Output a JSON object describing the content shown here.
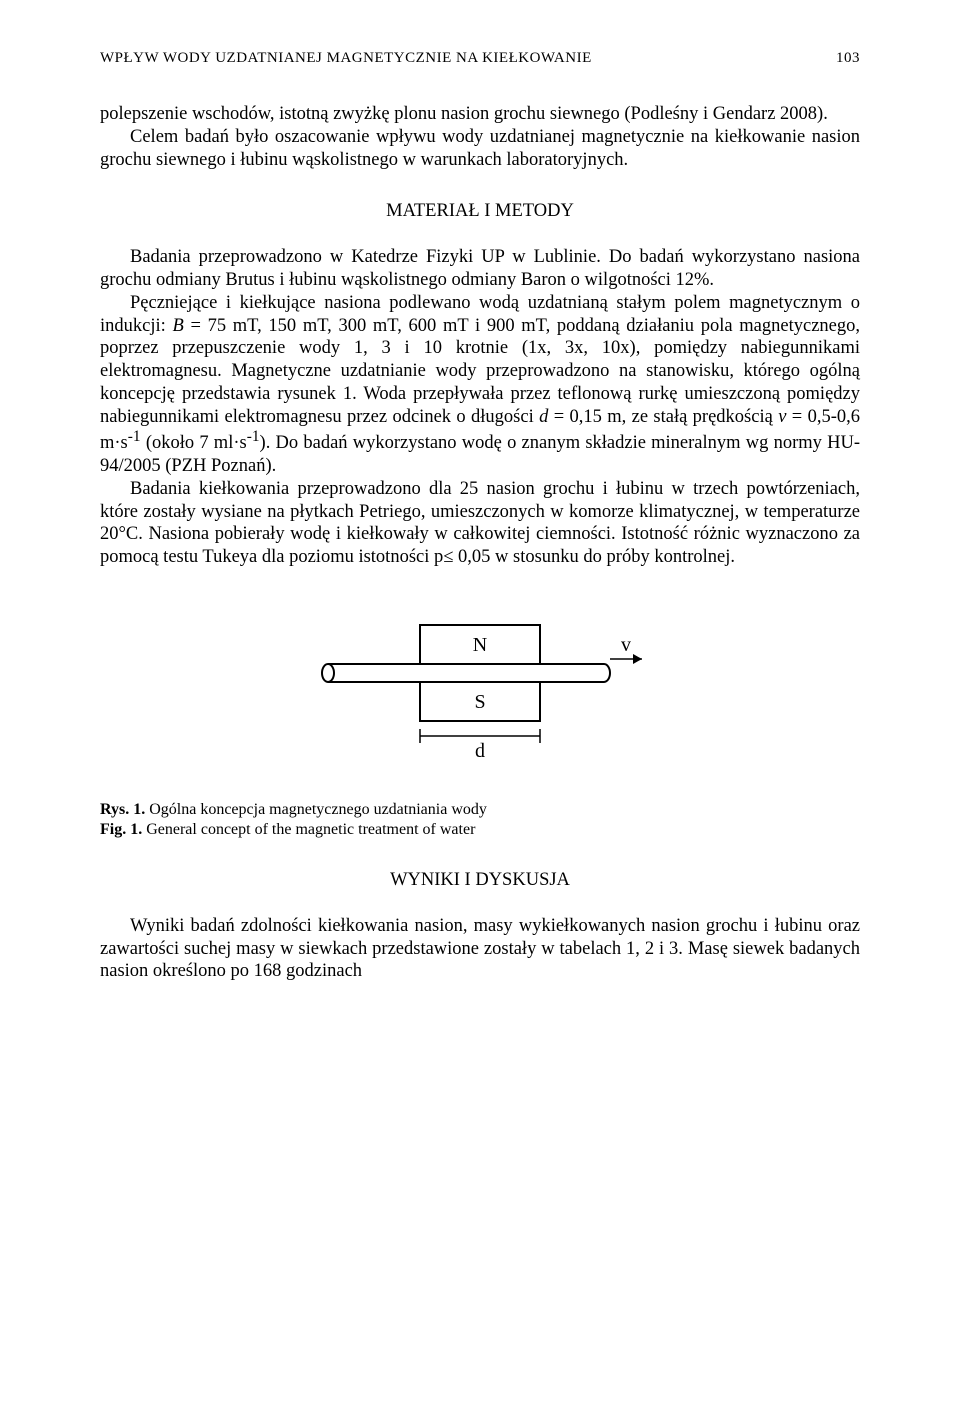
{
  "header": {
    "running_title": "WPŁYW WODY UZDATNIANEJ MAGNETYCZNIE NA KIEŁKOWANIE",
    "page_number": "103"
  },
  "paragraphs": {
    "p1": "polepszenie wschodów, istotną zwyżkę plonu nasion grochu siewnego (Podleśny i Gendarz 2008).",
    "p2": "Celem badań było oszacowanie wpływu wody uzdatnianej magnetycznie na kiełkowanie nasion grochu siewnego i łubinu wąskolistnego w warunkach laboratoryjnych."
  },
  "section1": {
    "title": "MATERIAŁ I METODY",
    "p1": "Badania przeprowadzono w Katedrze Fizyki UP w Lublinie. Do badań wykorzystano nasiona grochu odmiany Brutus i łubinu wąskolistnego odmiany Baron o wilgotności 12%.",
    "p2_html": "Pęczniejące i kiełkujące nasiona podlewano wodą uzdatnianą stałym polem magnetycznym o indukcji: <i>B</i> = 75 mT, 150 mT, 300 mT, 600 mT i 900 mT, poddaną działaniu  pola magnetycznego, poprzez przepuszczenie wody 1, 3 i 10 krotnie (1x, 3x, 10x), pomiędzy nabiegunnikami elektromagnesu. Magnetyczne uzdatnianie wody przeprowadzono na stanowisku, którego ogólną koncepcję przedstawia rysunek 1. Woda przepływała przez teflonową rurkę umieszczoną pomiędzy nabiegunnikami elektromagnesu przez odcinek o długości <i>d</i> = 0,15 m, ze stałą prędkością <i>v</i> = 0,5-0,6 m·s<sup>-1</sup> (około 7 ml·s<sup>-1</sup>). Do badań wykorzystano wodę o znanym składzie mineralnym wg normy HU-94/2005 (PZH Poznań).",
    "p3_html": "Badania kiełkowania przeprowadzono dla 25 nasion grochu i łubinu w trzech powtórzeniach, które zostały wysiane na płytkach Petriego, umieszczonych w komorze klimatycznej, w temperaturze 20°C. Nasiona pobierały wodę i kiełkowały w całkowitej ciemności. Istotność różnic wyznaczono za pomocą testu Tukeya dla poziomu istotności p≤ 0,05 w stosunku do próby kontrolnej."
  },
  "figure": {
    "labels": {
      "N": "N",
      "S": "S",
      "d": "d",
      "v": "v"
    },
    "colors": {
      "stroke": "#000000",
      "fill": "#ffffff"
    },
    "caption_ry_prefix": "Rys. 1.",
    "caption_ry_text": " Ogólna koncepcja magnetycznego uzdatniania wody",
    "caption_fig_prefix": "Fig. 1.",
    "caption_fig_text": " General concept of the magnetic treatment of water"
  },
  "section2": {
    "title": "WYNIKI I DYSKUSJA",
    "p1": "Wyniki badań zdolności kiełkowania nasion, masy wykiełkowanych nasion grochu i łubinu oraz zawartości suchej masy w siewkach przedstawione zostały w tabelach 1, 2 i 3. Masę siewek badanych nasion określono po 168 godzinach"
  }
}
